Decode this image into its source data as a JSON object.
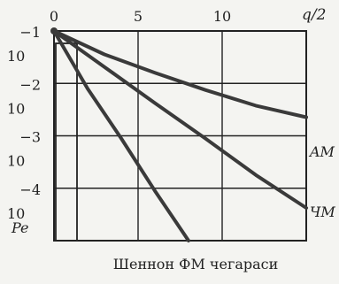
{
  "chart_data": {
    "type": "line",
    "xlabel": "q/2",
    "ylabel": "Pe",
    "yscale": "log",
    "xlim": [
      0,
      15
    ],
    "ylim": [
      1e-05,
      0.1
    ],
    "x_ticks": [
      {
        "value": 0,
        "label": "0"
      },
      {
        "value": 5,
        "label": "5"
      },
      {
        "value": 10,
        "label": "10"
      }
    ],
    "y_ticks": [
      {
        "value": 0.1,
        "base": "10",
        "exp": "−1"
      },
      {
        "value": 0.01,
        "base": "10",
        "exp": "−2"
      },
      {
        "value": 0.001,
        "base": "10",
        "exp": "−3"
      },
      {
        "value": 0.0001,
        "base": "10",
        "exp": "−4"
      }
    ],
    "grid": true,
    "series": [
      {
        "name": "AM",
        "x": [
          0,
          3,
          6,
          9,
          12,
          15
        ],
        "y": [
          0.1,
          0.0357,
          0.0159,
          0.0075,
          0.00376,
          0.00226
        ]
      },
      {
        "name": "ЧM",
        "x": [
          0,
          3,
          6,
          9,
          12,
          15
        ],
        "y": [
          0.1,
          0.0206,
          0.00422,
          0.00089,
          0.000179,
          4.22e-05
        ]
      },
      {
        "name": "",
        "x": [
          0,
          2,
          4,
          6,
          8
        ],
        "y": [
          0.1,
          0.00794,
          0.000891,
          8.91e-05,
          1e-05
        ]
      }
    ],
    "caption": "Шеннон ФМ чегараси",
    "colors": {
      "background": "#f4f4f1",
      "grid": "#222222",
      "curves": "#3a3a3a",
      "text": "#222222"
    }
  }
}
